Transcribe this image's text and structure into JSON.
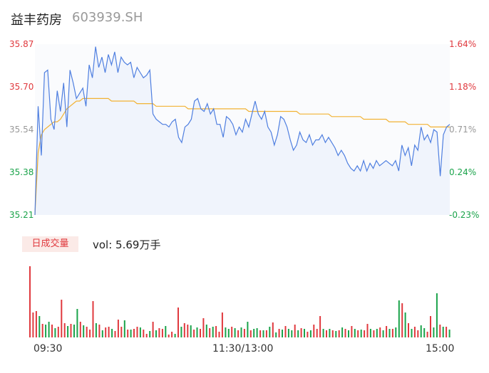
{
  "header": {
    "name": "益丰药房",
    "code": "603939.SH"
  },
  "colors": {
    "up": "#e0393e",
    "down": "#1aa34a",
    "neutral": "#999999",
    "price_line": "#4f7fe0",
    "avg_line": "#f2b233",
    "vol_label_bg": "#fbeae7"
  },
  "chart_data": [
    {
      "type": "line",
      "title": "",
      "y_labels_left": [
        "35.87",
        "35.70",
        "35.54",
        "35.38",
        "35.21"
      ],
      "y_labels_right": [
        "1.64%",
        "1.18%",
        "0.71%",
        "0.24%",
        "-0.23%"
      ],
      "ylim": [
        35.21,
        35.87
      ],
      "x_ticks": [
        "09:30",
        "11:30/13:00",
        "15:00"
      ],
      "series": [
        {
          "role": "price",
          "values": [
            35.21,
            35.63,
            35.44,
            35.76,
            35.77,
            35.58,
            35.54,
            35.69,
            35.61,
            35.72,
            35.55,
            35.77,
            35.72,
            35.66,
            35.68,
            35.7,
            35.63,
            35.79,
            35.74,
            35.86,
            35.78,
            35.82,
            35.76,
            35.83,
            35.79,
            35.84,
            35.76,
            35.82,
            35.8,
            35.79,
            35.8,
            35.74,
            35.78,
            35.76,
            35.74,
            35.75,
            35.77,
            35.6,
            35.58,
            35.57,
            35.56,
            35.56,
            35.55,
            35.57,
            35.58,
            35.51,
            35.49,
            35.55,
            35.56,
            35.58,
            35.65,
            35.66,
            35.62,
            35.61,
            35.64,
            35.6,
            35.62,
            35.56,
            35.56,
            35.51,
            35.59,
            35.58,
            35.56,
            35.52,
            35.55,
            35.53,
            35.58,
            35.55,
            35.6,
            35.65,
            35.6,
            35.58,
            35.61,
            35.55,
            35.53,
            35.48,
            35.52,
            35.59,
            35.58,
            35.55,
            35.5,
            35.46,
            35.48,
            35.53,
            35.5,
            35.49,
            35.52,
            35.48,
            35.5,
            35.5,
            35.52,
            35.49,
            35.51,
            35.49,
            35.47,
            35.44,
            35.46,
            35.44,
            35.41,
            35.39,
            35.38,
            35.4,
            35.38,
            35.42,
            35.38,
            35.41,
            35.39,
            35.42,
            35.4,
            35.41,
            35.42,
            35.41,
            35.4,
            35.42,
            35.38,
            35.48,
            35.44,
            35.47,
            35.4,
            35.48,
            35.46,
            35.55,
            35.5,
            35.52,
            35.49,
            35.54,
            35.53,
            35.36,
            35.52,
            35.55,
            35.56
          ]
        },
        {
          "role": "average",
          "values": [
            35.21,
            35.45,
            35.52,
            35.54,
            35.55,
            35.56,
            35.57,
            35.57,
            35.58,
            35.6,
            35.62,
            35.63,
            35.64,
            35.65,
            35.65,
            35.66,
            35.66,
            35.66,
            35.66,
            35.66,
            35.66,
            35.66,
            35.66,
            35.66,
            35.65,
            35.65,
            35.65,
            35.65,
            35.65,
            35.65,
            35.65,
            35.65,
            35.64,
            35.64,
            35.64,
            35.64,
            35.64,
            35.64,
            35.63,
            35.63,
            35.63,
            35.63,
            35.63,
            35.63,
            35.63,
            35.63,
            35.63,
            35.63,
            35.62,
            35.62,
            35.62,
            35.62,
            35.62,
            35.62,
            35.62,
            35.62,
            35.62,
            35.62,
            35.62,
            35.62,
            35.62,
            35.62,
            35.62,
            35.62,
            35.62,
            35.62,
            35.62,
            35.61,
            35.61,
            35.61,
            35.61,
            35.61,
            35.61,
            35.61,
            35.61,
            35.61,
            35.61,
            35.61,
            35.61,
            35.61,
            35.61,
            35.61,
            35.61,
            35.6,
            35.6,
            35.6,
            35.6,
            35.6,
            35.6,
            35.6,
            35.6,
            35.6,
            35.6,
            35.59,
            35.59,
            35.59,
            35.59,
            35.59,
            35.59,
            35.59,
            35.59,
            35.59,
            35.59,
            35.58,
            35.58,
            35.58,
            35.58,
            35.58,
            35.58,
            35.58,
            35.58,
            35.57,
            35.57,
            35.57,
            35.57,
            35.57,
            35.57,
            35.56,
            35.56,
            35.56,
            35.56,
            35.56,
            35.56,
            35.56,
            35.55,
            35.55,
            35.55,
            35.55,
            35.55,
            35.55,
            35.55
          ]
        }
      ]
    },
    {
      "type": "bar",
      "label": "日成交量",
      "summary_label": "vol: 5.69万手",
      "values": [
        100,
        35,
        37,
        30,
        19,
        18,
        22,
        18,
        13,
        15,
        53,
        20,
        16,
        19,
        18,
        40,
        22,
        17,
        15,
        11,
        51,
        20,
        18,
        10,
        14,
        15,
        12,
        9,
        25,
        15,
        24,
        11,
        11,
        12,
        15,
        14,
        11,
        5,
        9,
        22,
        10,
        13,
        12,
        16,
        4,
        8,
        5,
        42,
        15,
        20,
        18,
        17,
        11,
        14,
        12,
        27,
        18,
        13,
        15,
        16,
        8,
        35,
        14,
        12,
        15,
        13,
        10,
        14,
        12,
        22,
        10,
        12,
        13,
        10,
        10,
        10,
        15,
        21,
        7,
        12,
        11,
        16,
        12,
        10,
        18,
        10,
        13,
        12,
        8,
        10,
        18,
        12,
        30,
        12,
        10,
        12,
        10,
        9,
        10,
        14,
        12,
        10,
        16,
        12,
        10,
        11,
        10,
        19,
        12,
        10,
        12,
        14,
        10,
        16,
        12,
        12,
        14,
        52,
        48,
        35,
        20,
        12,
        15,
        10,
        17,
        13,
        8,
        30,
        14,
        62,
        18,
        15,
        15,
        11
      ],
      "directions": [
        "u",
        "u",
        "u",
        "d",
        "u",
        "d",
        "d",
        "u",
        "d",
        "u",
        "u",
        "u",
        "d",
        "u",
        "d",
        "d",
        "u",
        "d",
        "u",
        "u",
        "u",
        "d",
        "u",
        "d",
        "u",
        "u",
        "d",
        "u",
        "u",
        "u",
        "d",
        "u",
        "d",
        "u",
        "u",
        "d",
        "u",
        "u",
        "d",
        "u",
        "d",
        "u",
        "u",
        "d",
        "u",
        "u",
        "d",
        "u",
        "d",
        "u",
        "u",
        "d",
        "u",
        "d",
        "u",
        "u",
        "d",
        "u",
        "d",
        "u",
        "u",
        "u",
        "d",
        "d",
        "u",
        "d",
        "u",
        "d",
        "u",
        "d",
        "u",
        "d",
        "d",
        "u",
        "d",
        "u",
        "d",
        "u",
        "d",
        "u",
        "d",
        "u",
        "d",
        "d",
        "u",
        "d",
        "u",
        "d",
        "u",
        "d",
        "u",
        "u",
        "u",
        "d",
        "u",
        "d",
        "u",
        "d",
        "u",
        "d",
        "u",
        "d",
        "u",
        "d",
        "u",
        "d",
        "u",
        "u",
        "d",
        "u",
        "d",
        "u",
        "d",
        "u",
        "d",
        "u",
        "d",
        "d",
        "u",
        "d",
        "u",
        "d",
        "u",
        "u",
        "d",
        "d",
        "u",
        "u",
        "d",
        "d",
        "u",
        "d",
        "u",
        "d"
      ]
    }
  ]
}
